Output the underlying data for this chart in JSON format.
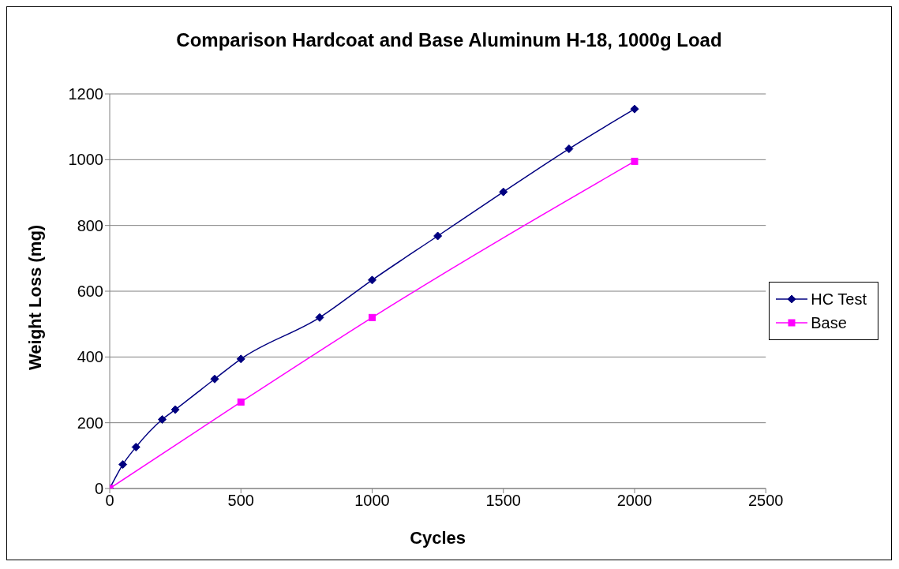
{
  "chart_data": {
    "type": "line",
    "title": "Comparison Hardcoat and Base Aluminum H-18, 1000g Load",
    "xlabel": "Cycles",
    "ylabel": "Weight Loss (mg)",
    "xlim": [
      0,
      2500
    ],
    "xticks": [
      0,
      500,
      1000,
      1500,
      2000,
      2500
    ],
    "ylim": [
      0,
      1200
    ],
    "yticks": [
      0,
      200,
      400,
      600,
      800,
      1000,
      1200
    ],
    "grid": "y",
    "legend": "right",
    "series": [
      {
        "name": "HC Test",
        "color": "#000080",
        "marker": "diamond",
        "x": [
          0,
          50,
          100,
          200,
          250,
          400,
          500,
          800,
          1000,
          1250,
          1500,
          1750,
          2000
        ],
        "values": [
          0,
          73,
          126,
          210,
          240,
          333,
          394,
          520,
          634,
          768,
          902,
          1033,
          1154
        ]
      },
      {
        "name": "Base",
        "color": "#ff00ff",
        "marker": "square",
        "x": [
          0,
          500,
          1000,
          2000
        ],
        "values": [
          0,
          263,
          520,
          995
        ]
      }
    ]
  }
}
